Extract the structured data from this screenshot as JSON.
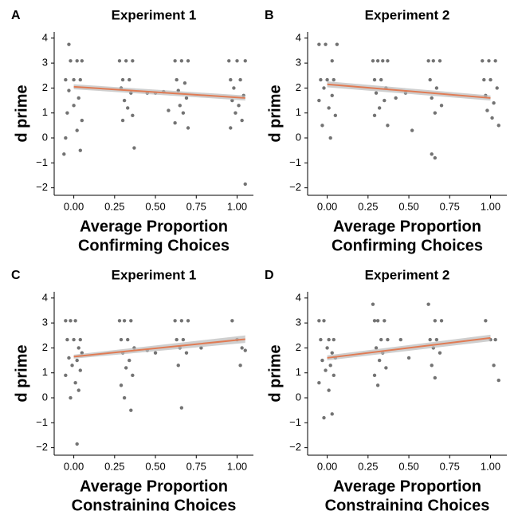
{
  "chart_data": [
    {
      "type": "scatter",
      "panel_label": "A",
      "title": "Experiment 1",
      "ylabel": "d prime",
      "xlabel": [
        "Average Proportion",
        "Confirming Choices"
      ],
      "xlim": [
        -0.12,
        1.1
      ],
      "ylim": [
        -2.3,
        4.25
      ],
      "xticks": [
        {
          "value": 0,
          "label": "0.00"
        },
        {
          "value": 0.25,
          "label": "0.25"
        },
        {
          "value": 0.5,
          "label": "0.50"
        },
        {
          "value": 0.75,
          "label": "0.75"
        },
        {
          "value": 1,
          "label": "1.00"
        }
      ],
      "yticks": [
        {
          "value": -2,
          "label": "−2"
        },
        {
          "value": -1,
          "label": "−1"
        },
        0,
        1,
        2,
        3,
        4
      ],
      "color": "#000000",
      "x": [
        -0.02,
        0.02,
        0.05,
        -0.05,
        0.0,
        0.04,
        -0.03,
        0.03,
        0.0,
        -0.04,
        0.05,
        0.02,
        -0.05,
        0.04,
        -0.06,
        -0.03,
        0.28,
        0.32,
        0.36,
        0.3,
        0.34,
        0.29,
        0.35,
        0.31,
        0.33,
        0.36,
        0.3,
        0.37,
        0.45,
        0.5,
        0.55,
        0.62,
        0.66,
        0.7,
        0.63,
        0.68,
        0.64,
        0.69,
        0.65,
        0.67,
        0.62,
        0.7,
        0.58,
        0.95,
        1.0,
        1.05,
        0.96,
        1.02,
        0.98,
        1.04,
        0.97,
        1.01,
        0.99,
        1.03,
        0.96,
        1.05
      ],
      "values": [
        3.09,
        3.09,
        3.09,
        2.33,
        2.33,
        2.33,
        1.9,
        1.6,
        1.3,
        1.0,
        0.7,
        0.3,
        0.0,
        -0.5,
        -0.65,
        3.75,
        3.09,
        3.09,
        3.09,
        2.33,
        2.33,
        2.0,
        1.8,
        1.5,
        1.2,
        0.9,
        0.7,
        -0.4,
        1.8,
        1.8,
        1.85,
        3.09,
        3.09,
        3.09,
        2.33,
        2.2,
        1.9,
        1.6,
        1.3,
        1.0,
        0.6,
        0.4,
        1.1,
        3.09,
        3.09,
        3.09,
        2.33,
        2.33,
        2.0,
        1.7,
        1.5,
        1.3,
        1.0,
        0.7,
        0.4,
        -1.85
      ],
      "trend": {
        "color": "#e07b54",
        "band_color": "#bbbbbb",
        "x": [
          0,
          1.05
        ],
        "values": [
          2.05,
          1.6
        ],
        "lower": [
          1.95,
          1.5
        ],
        "upper": [
          2.15,
          1.7
        ]
      }
    },
    {
      "type": "scatter",
      "panel_label": "B",
      "title": "Experiment 2",
      "ylabel": "d prime",
      "xlabel": [
        "Average Proportion",
        "Confirming Choices"
      ],
      "xlim": [
        -0.12,
        1.1
      ],
      "ylim": [
        -2.3,
        4.25
      ],
      "xticks": [
        {
          "value": 0,
          "label": "0.00"
        },
        {
          "value": 0.25,
          "label": "0.25"
        },
        {
          "value": 0.5,
          "label": "0.50"
        },
        {
          "value": 0.75,
          "label": "0.75"
        },
        {
          "value": 1,
          "label": "1.00"
        }
      ],
      "yticks": [
        {
          "value": -2,
          "label": "−2"
        },
        {
          "value": -1,
          "label": "−1"
        },
        0,
        1,
        2,
        3,
        4
      ],
      "color": "#000000",
      "x": [
        -0.05,
        -0.01,
        0.03,
        0.06,
        -0.04,
        0.0,
        0.04,
        -0.02,
        0.03,
        -0.05,
        0.01,
        0.05,
        -0.03,
        0.02,
        0.28,
        0.31,
        0.34,
        0.37,
        0.29,
        0.33,
        0.36,
        0.3,
        0.35,
        0.32,
        0.29,
        0.37,
        0.42,
        0.48,
        0.52,
        0.62,
        0.65,
        0.69,
        0.63,
        0.67,
        0.64,
        0.7,
        0.66,
        0.64,
        0.66,
        0.95,
        0.99,
        1.03,
        0.96,
        1.0,
        1.04,
        0.97,
        1.02,
        0.98,
        1.01,
        1.05
      ],
      "values": [
        3.75,
        3.75,
        3.09,
        3.75,
        2.33,
        2.33,
        2.33,
        2.0,
        1.7,
        1.5,
        1.2,
        0.9,
        0.5,
        0.0,
        3.09,
        3.09,
        3.09,
        3.09,
        2.33,
        2.33,
        2.0,
        1.8,
        1.5,
        1.2,
        0.9,
        0.5,
        1.6,
        1.8,
        0.3,
        3.09,
        3.09,
        3.09,
        2.33,
        2.0,
        1.6,
        1.3,
        1.0,
        -0.65,
        -0.8,
        3.09,
        3.09,
        3.09,
        2.33,
        2.33,
        2.0,
        1.7,
        1.4,
        1.1,
        0.8,
        0.5
      ],
      "trend": {
        "color": "#e07b54",
        "band_color": "#bbbbbb",
        "x": [
          0,
          1.0
        ],
        "values": [
          2.15,
          1.6
        ],
        "lower": [
          2.03,
          1.5
        ],
        "upper": [
          2.27,
          1.7
        ]
      }
    },
    {
      "type": "scatter",
      "panel_label": "C",
      "title": "Experiment 1",
      "ylabel": "d prime",
      "xlabel": [
        "Average Proportion",
        "Constraining Choices"
      ],
      "xlim": [
        -0.12,
        1.1
      ],
      "ylim": [
        -2.3,
        4.25
      ],
      "xticks": [
        {
          "value": 0,
          "label": "0.00"
        },
        {
          "value": 0.25,
          "label": "0.25"
        },
        {
          "value": 0.5,
          "label": "0.50"
        },
        {
          "value": 0.75,
          "label": "0.75"
        },
        {
          "value": 1,
          "label": "1.00"
        }
      ],
      "yticks": [
        {
          "value": -2,
          "label": "−2"
        },
        {
          "value": -1,
          "label": "−1"
        },
        0,
        1,
        2,
        3,
        4
      ],
      "color": "#000000",
      "x": [
        -0.05,
        -0.02,
        0.01,
        0.04,
        -0.04,
        0.0,
        0.03,
        0.05,
        -0.03,
        0.02,
        -0.01,
        0.04,
        -0.05,
        0.01,
        0.03,
        -0.02,
        0.02,
        0.28,
        0.31,
        0.35,
        0.29,
        0.33,
        0.37,
        0.3,
        0.34,
        0.32,
        0.36,
        0.29,
        0.31,
        0.35,
        0.45,
        0.5,
        0.62,
        0.66,
        0.7,
        0.63,
        0.67,
        0.65,
        0.69,
        0.64,
        0.66,
        0.78,
        0.97,
        1.0,
        1.03,
        1.05,
        1.02
      ],
      "values": [
        3.09,
        3.09,
        3.09,
        2.33,
        2.33,
        2.33,
        2.0,
        1.8,
        1.6,
        1.5,
        1.3,
        1.1,
        0.9,
        0.6,
        0.3,
        0.0,
        -1.85,
        3.09,
        3.09,
        3.09,
        2.33,
        2.33,
        2.0,
        1.8,
        1.5,
        1.2,
        0.9,
        0.5,
        0.0,
        -0.5,
        1.9,
        1.8,
        3.09,
        3.09,
        3.09,
        2.33,
        2.33,
        2.0,
        1.8,
        1.3,
        -0.4,
        2.0,
        3.09,
        2.33,
        2.0,
        1.9,
        1.3
      ],
      "trend": {
        "color": "#e07b54",
        "band_color": "#bbbbbb",
        "x": [
          0,
          1.05
        ],
        "values": [
          1.65,
          2.35
        ],
        "lower": [
          1.57,
          2.2
        ],
        "upper": [
          1.73,
          2.5
        ]
      }
    },
    {
      "type": "scatter",
      "panel_label": "D",
      "title": "Experiment 2",
      "ylabel": "d prime",
      "xlabel": [
        "Average Proportion",
        "Constraining Choices"
      ],
      "xlim": [
        -0.12,
        1.1
      ],
      "ylim": [
        -2.3,
        4.25
      ],
      "xticks": [
        {
          "value": 0,
          "label": "0.00"
        },
        {
          "value": 0.25,
          "label": "0.25"
        },
        {
          "value": 0.5,
          "label": "0.50"
        },
        {
          "value": 0.75,
          "label": "0.75"
        },
        {
          "value": 1,
          "label": "1.00"
        }
      ],
      "yticks": [
        {
          "value": -2,
          "label": "−2"
        },
        {
          "value": -1,
          "label": "−1"
        },
        0,
        1,
        2,
        3,
        4
      ],
      "color": "#000000",
      "x": [
        -0.05,
        -0.02,
        0.01,
        0.04,
        -0.04,
        0.0,
        0.03,
        0.05,
        -0.03,
        0.02,
        -0.01,
        0.04,
        -0.05,
        0.01,
        0.03,
        -0.02,
        0.28,
        0.31,
        0.35,
        0.29,
        0.33,
        0.37,
        0.3,
        0.34,
        0.32,
        0.36,
        0.29,
        0.31,
        0.45,
        0.5,
        0.62,
        0.66,
        0.7,
        0.63,
        0.67,
        0.65,
        0.69,
        0.64,
        0.66,
        0.97,
        1.0,
        1.03,
        1.02,
        1.05
      ],
      "values": [
        3.09,
        3.09,
        2.33,
        2.33,
        2.33,
        2.0,
        1.8,
        1.6,
        1.5,
        1.3,
        1.1,
        0.9,
        0.6,
        0.3,
        -0.65,
        -0.8,
        3.75,
        3.09,
        3.09,
        3.09,
        2.33,
        2.33,
        2.0,
        1.8,
        1.5,
        1.2,
        0.9,
        0.5,
        2.33,
        1.6,
        3.75,
        3.09,
        3.09,
        2.33,
        2.33,
        2.0,
        1.8,
        1.3,
        0.8,
        3.09,
        2.33,
        2.33,
        1.3,
        0.7
      ],
      "trend": {
        "color": "#e07b54",
        "band_color": "#bbbbbb",
        "x": [
          0,
          1.0
        ],
        "values": [
          1.6,
          2.4
        ],
        "lower": [
          1.5,
          2.27
        ],
        "upper": [
          1.7,
          2.53
        ]
      }
    }
  ]
}
